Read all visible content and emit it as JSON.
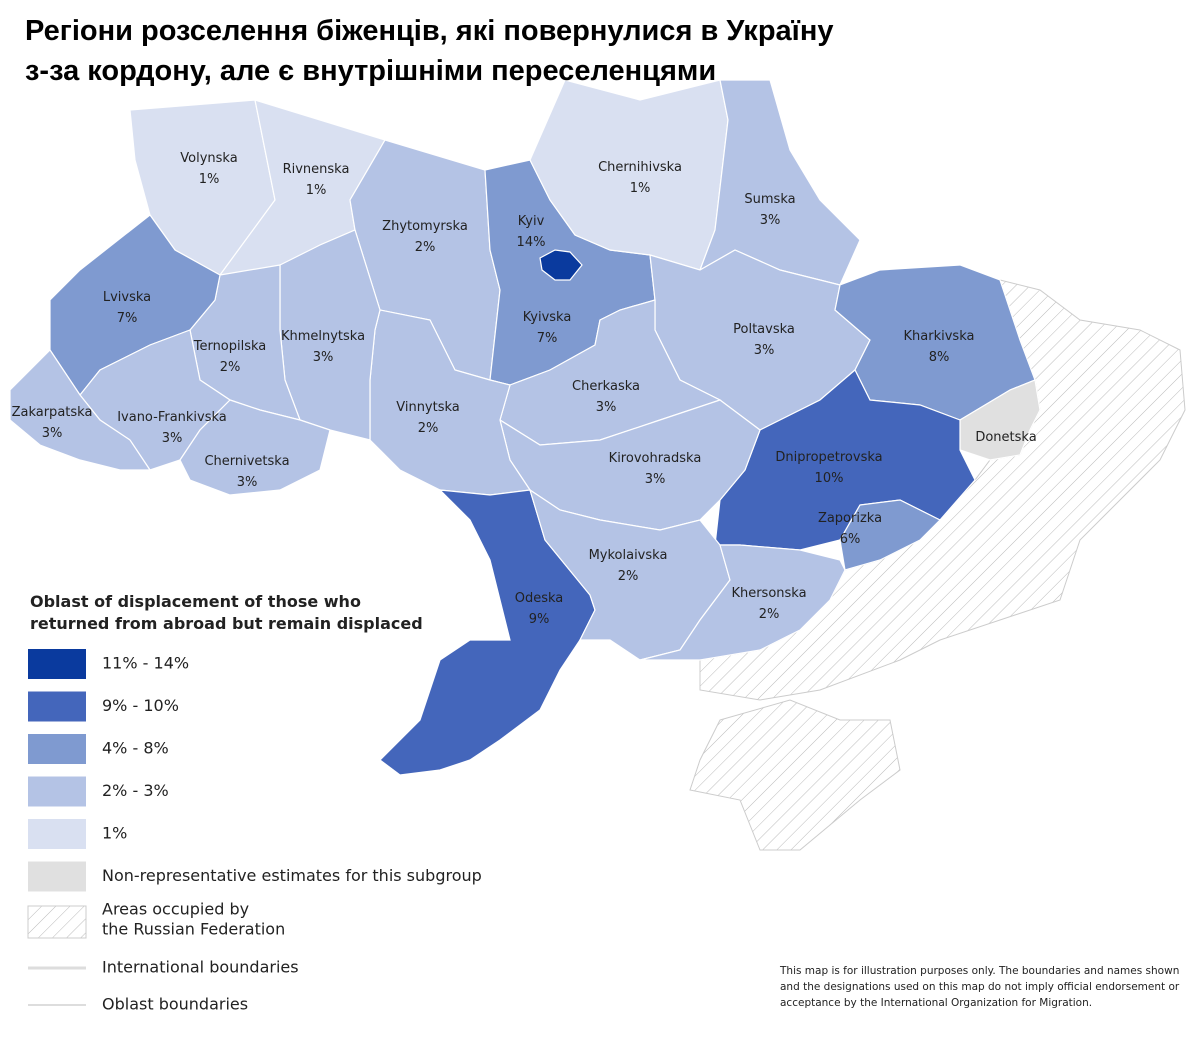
{
  "title": [
    "Регіони розселення біженців, які повернулися в Україну",
    "з-за кордону, але є внутрішніми переселенцями"
  ],
  "regions": [
    {
      "name": "Volynska",
      "label": "1%",
      "color": "#d9e0f1"
    },
    {
      "name": "Rivnenska",
      "label": "1%",
      "color": "#d9e0f1"
    },
    {
      "name": "Zhytomyrska",
      "label": "2%",
      "color": "#b4c3e5"
    },
    {
      "name": "Kyivska",
      "label": "7%",
      "color": "#7f9ad0"
    },
    {
      "name": "Kyiv",
      "label": "14%",
      "color": "#0a3a9e"
    },
    {
      "name": "Chernihivska",
      "label": "1%",
      "color": "#d9e0f1"
    },
    {
      "name": "Sumska",
      "label": "3%",
      "color": "#b4c3e5"
    },
    {
      "name": "Poltavska",
      "label": "3%",
      "color": "#b4c3e5"
    },
    {
      "name": "Kharkivska",
      "label": "8%",
      "color": "#7f9ad0"
    },
    {
      "name": "Donetska",
      "color": "#e0e0e0"
    },
    {
      "name": "Dnipropetrovska",
      "label": "10%",
      "color": "#4466bb"
    },
    {
      "name": "Zaporizka",
      "label": "6%",
      "color": "#7f9ad0"
    },
    {
      "name": "Cherkaska",
      "label": "3%",
      "color": "#b4c3e5"
    },
    {
      "name": "Kirovohradska",
      "label": "3%",
      "color": "#b4c3e5"
    },
    {
      "name": "Vinnytska",
      "label": "2%",
      "color": "#b4c3e5"
    },
    {
      "name": "Khmelnytska",
      "label": "3%",
      "color": "#b4c3e5"
    },
    {
      "name": "Ternopilska",
      "label": "2%",
      "color": "#b4c3e5"
    },
    {
      "name": "Lvivska",
      "label": "7%",
      "color": "#7f9ad0"
    },
    {
      "name": "Ivano-Frankivska",
      "label": "3%",
      "color": "#b4c3e5"
    },
    {
      "name": "Zakarpatska",
      "label": "3%",
      "color": "#b4c3e5"
    },
    {
      "name": "Chernivetska",
      "label": "3%",
      "color": "#b4c3e5"
    },
    {
      "name": "Odeska",
      "label": "9%",
      "color": "#4466bb"
    },
    {
      "name": "Mykolaivska",
      "label": "2%",
      "color": "#b4c3e5"
    },
    {
      "name": "Khersonska",
      "label": "2%",
      "color": "#b4c3e5"
    }
  ],
  "legend": {
    "title": [
      "Oblast of displacement of those who",
      "returned from abroad but remain displaced"
    ],
    "items": [
      {
        "label": "11% - 14%",
        "color": "#0a3a9e"
      },
      {
        "label": "9% - 10%",
        "color": "#4466bb"
      },
      {
        "label": "4% - 8%",
        "color": "#7f9ad0"
      },
      {
        "label": "2% - 3%",
        "color": "#b4c3e5"
      },
      {
        "label": "1%",
        "color": "#d9e0f1"
      },
      {
        "label": "Non-representative estimates for this subgroup",
        "color": "#e0e0e0"
      }
    ],
    "occupied": [
      "Areas occupied by",
      "the Russian Federation"
    ],
    "international": "International boundaries",
    "oblast": "Oblast boundaries"
  },
  "disclaimer": [
    "This map is for illustration purposes only. The boundaries and names shown",
    "and the designations used on this map do not imply official endorsement or",
    "acceptance by the International Organization for Migration."
  ]
}
